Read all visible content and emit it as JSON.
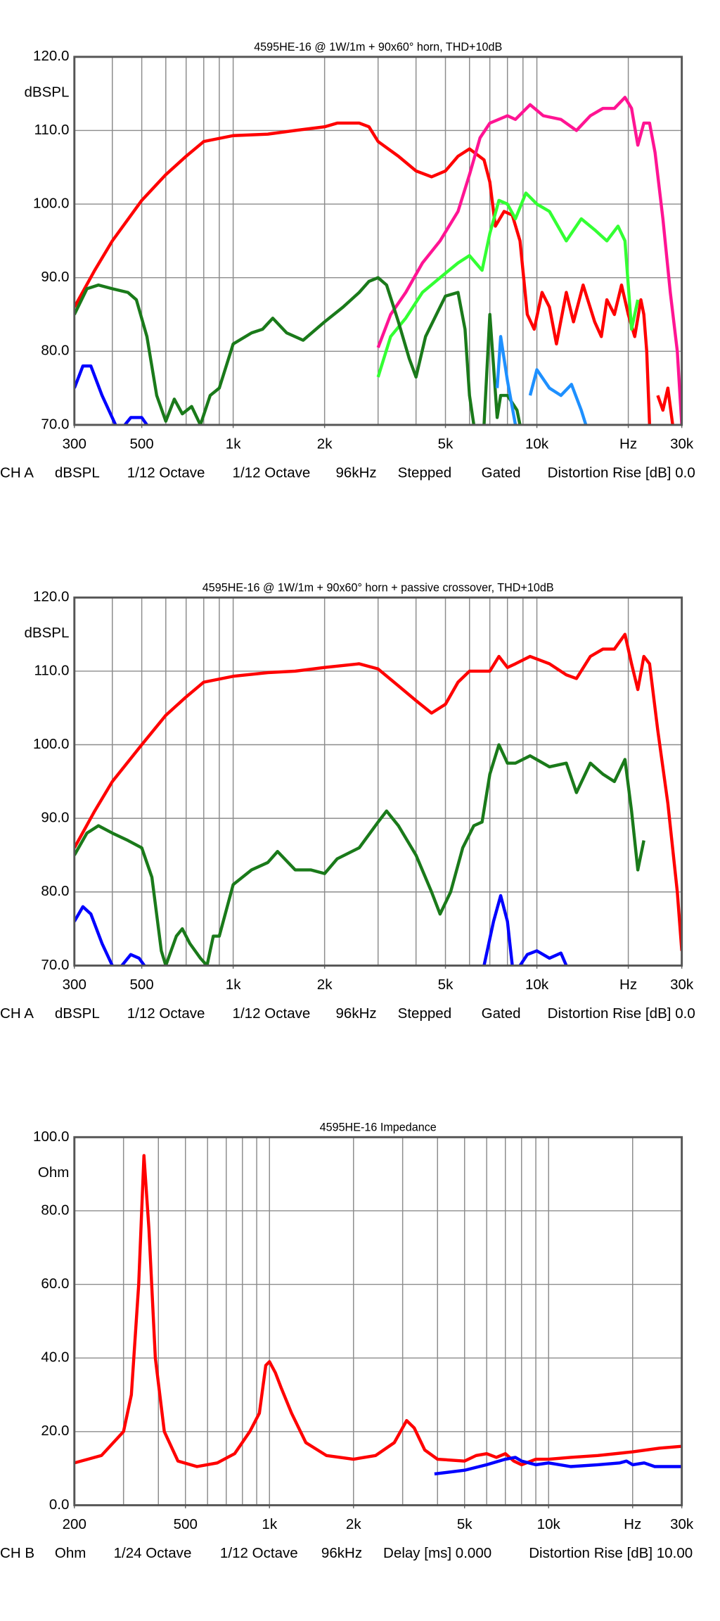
{
  "chart_data": [
    {
      "type": "line",
      "title": "4595HE-16 @ 1W/1m + 90x60° horn, THD+10dB",
      "ylabel": "dBSPL",
      "xscale": "log",
      "grid": true,
      "xlim": [
        300,
        30000
      ],
      "ylim": [
        70,
        120
      ],
      "xticks": [
        300,
        500,
        {
          "value": 1000,
          "label": "1k"
        },
        {
          "value": 2000,
          "label": "2k"
        },
        {
          "value": 5000,
          "label": "5k"
        },
        {
          "value": 10000,
          "label": "10k"
        },
        {
          "value": 20000,
          "label": "Hz"
        },
        {
          "value": 30000,
          "label": "30k"
        }
      ],
      "xgrid": [
        300,
        400,
        500,
        600,
        700,
        800,
        900,
        1000,
        2000,
        3000,
        4000,
        5000,
        6000,
        7000,
        8000,
        9000,
        10000,
        20000,
        30000
      ],
      "yticks": [
        {
          "value": 70,
          "label": "70.0"
        },
        {
          "value": 80,
          "label": "80.0"
        },
        {
          "value": 90,
          "label": "90.0"
        },
        {
          "value": 100,
          "label": "100.0"
        },
        {
          "value": 110,
          "label": "110.0"
        },
        {
          "value": 120,
          "label": "120.0"
        }
      ],
      "footer": [
        "CH A",
        "dBSPL",
        "1/12 Octave",
        "1/12 Octave",
        "96kHz",
        "Stepped",
        "Gated",
        "Distortion Rise [dB] 0.0"
      ],
      "series": [
        {
          "color": "#ff0000",
          "x": [
            300,
            350,
            400,
            500,
            600,
            700,
            800,
            1000,
            1300,
            1600,
            2000,
            2200,
            2600,
            2800,
            3000,
            3500,
            4000,
            4500,
            5000,
            5500,
            6000,
            6700,
            7000,
            7300,
            7800,
            8300,
            8800,
            9300,
            9800,
            10400,
            11000,
            11600,
            12500,
            13200,
            14200,
            15500,
            16300,
            17000,
            18000,
            19000,
            20000,
            21000,
            22000,
            22500,
            23000,
            23500,
            24200,
            25000,
            26000,
            27000,
            28000
          ],
          "values": [
            86,
            91,
            95,
            100.5,
            104,
            106.5,
            108.5,
            109.3,
            109.5,
            110,
            110.5,
            111,
            111,
            110.5,
            108.5,
            106.5,
            104.5,
            103.7,
            104.5,
            106.5,
            107.5,
            106,
            103,
            97,
            99,
            98.5,
            95,
            85,
            83,
            88,
            86,
            81,
            88,
            84,
            89,
            84,
            82,
            87,
            85,
            89,
            85,
            82,
            87,
            85,
            80,
            70,
            null,
            74,
            72,
            75,
            70
          ]
        },
        {
          "color": "#ff1493",
          "x": [
            3000,
            3300,
            3700,
            4200,
            4800,
            5500,
            6000,
            6500,
            7000,
            8000,
            8500,
            9500,
            10500,
            12000,
            13500,
            15000,
            16500,
            18000,
            19500,
            20500,
            21500,
            22500,
            23500,
            24500,
            26000,
            27500,
            29000,
            30000
          ],
          "values": [
            80.5,
            85,
            88,
            92,
            95,
            99,
            104,
            109,
            111,
            112,
            111.5,
            113.5,
            112,
            111.5,
            110,
            112,
            113,
            113,
            114.5,
            113,
            108,
            111,
            111,
            107,
            98,
            88,
            80,
            70
          ]
        },
        {
          "color": "#33ff33",
          "x": [
            3000,
            3300,
            3700,
            4200,
            4800,
            5500,
            6000,
            6600,
            7000,
            7500,
            8000,
            8500,
            9200,
            10000,
            11000,
            12500,
            14000,
            15500,
            17000,
            18500,
            19500,
            20500,
            21500
          ],
          "values": [
            76.5,
            82,
            84.5,
            88,
            90,
            92,
            93,
            91,
            96,
            100.5,
            100,
            98,
            101.5,
            100,
            99,
            95,
            98,
            96.5,
            95,
            97,
            95,
            83,
            87
          ]
        },
        {
          "color": "#1a7a1a",
          "x": [
            300,
            330,
            360,
            400,
            450,
            480,
            520,
            560,
            600,
            640,
            680,
            730,
            780,
            840,
            900,
            1000,
            1150,
            1250,
            1350,
            1500,
            1700,
            2000,
            2300,
            2600,
            2800,
            3000,
            3200,
            3500,
            3800,
            4000,
            4300,
            5000,
            5500,
            5800,
            6000,
            6200,
            6450,
            6700,
            7000,
            7200,
            7400,
            7600,
            8000,
            8600,
            8800
          ],
          "values": [
            85,
            88.5,
            89,
            88.5,
            88,
            87,
            82,
            74,
            70.5,
            73.5,
            71.5,
            72.5,
            70,
            74,
            75,
            81,
            82.5,
            83,
            84.5,
            82.5,
            81.5,
            84,
            86,
            88,
            89.5,
            90,
            89,
            84,
            79,
            76.5,
            82,
            87.5,
            88,
            83,
            74,
            70,
            null,
            70,
            85,
            78,
            71,
            74,
            74,
            72,
            70
          ]
        },
        {
          "color": "#0000ff",
          "x": [
            300,
            320,
            340,
            370,
            410,
            425,
            440,
            460,
            500,
            520
          ],
          "values": [
            75,
            78,
            78,
            74,
            70,
            null,
            70,
            71,
            71,
            70
          ]
        },
        {
          "color": "#1e90ff",
          "x": [
            7400,
            7600,
            8000,
            8500,
            9000,
            9500,
            10000,
            11000,
            12000,
            13000,
            14000,
            14500
          ],
          "values": [
            75,
            82,
            76,
            70,
            null,
            74,
            77.5,
            75,
            74,
            75.5,
            72,
            70
          ]
        }
      ]
    },
    {
      "type": "line",
      "title": "4595HE-16 @ 1W/1m + 90x60° horn + passive crossover, THD+10dB",
      "ylabel": "dBSPL",
      "xscale": "log",
      "grid": true,
      "xlim": [
        300,
        30000
      ],
      "ylim": [
        70,
        120
      ],
      "xticks": [
        300,
        500,
        {
          "value": 1000,
          "label": "1k"
        },
        {
          "value": 2000,
          "label": "2k"
        },
        {
          "value": 5000,
          "label": "5k"
        },
        {
          "value": 10000,
          "label": "10k"
        },
        {
          "value": 20000,
          "label": "Hz"
        },
        {
          "value": 30000,
          "label": "30k"
        }
      ],
      "xgrid": [
        300,
        400,
        500,
        600,
        700,
        800,
        900,
        1000,
        2000,
        3000,
        4000,
        5000,
        6000,
        7000,
        8000,
        9000,
        10000,
        20000,
        30000
      ],
      "yticks": [
        {
          "value": 70,
          "label": "70.0"
        },
        {
          "value": 80,
          "label": "80.0"
        },
        {
          "value": 90,
          "label": "90.0"
        },
        {
          "value": 100,
          "label": "100.0"
        },
        {
          "value": 110,
          "label": "110.0"
        },
        {
          "value": 120,
          "label": "120.0"
        }
      ],
      "footer": [
        "CH A",
        "dBSPL",
        "1/12 Octave",
        "1/12 Octave",
        "96kHz",
        "Stepped",
        "Gated",
        "Distortion Rise [dB] 0.0"
      ],
      "series": [
        {
          "color": "#ff0000",
          "x": [
            300,
            350,
            400,
            500,
            600,
            700,
            800,
            1000,
            1300,
            1600,
            2000,
            2600,
            3000,
            3500,
            4000,
            4500,
            5000,
            5500,
            6000,
            7000,
            7500,
            8000,
            8500,
            9500,
            11000,
            12500,
            13500,
            15000,
            16500,
            18000,
            19500,
            20500,
            21500,
            22500,
            23500,
            25000,
            27000,
            29000,
            30000
          ],
          "values": [
            86,
            91,
            95,
            100,
            104,
            106.5,
            108.5,
            109.3,
            109.8,
            110,
            110.5,
            111,
            110.3,
            108,
            106,
            104.3,
            105.5,
            108.5,
            110,
            110,
            112,
            110.5,
            111,
            112,
            111,
            109.5,
            109,
            112,
            113,
            113,
            115,
            111,
            107.5,
            112,
            111,
            102,
            92,
            80,
            72
          ]
        },
        {
          "color": "#1a7a1a",
          "x": [
            300,
            330,
            360,
            400,
            450,
            500,
            540,
            580,
            600,
            650,
            680,
            720,
            780,
            820,
            860,
            900,
            1000,
            1150,
            1300,
            1400,
            1600,
            1800,
            2000,
            2200,
            2600,
            3000,
            3200,
            3500,
            4000,
            4500,
            4800,
            5200,
            5700,
            6200,
            6600,
            7000,
            7500,
            8000,
            8500,
            9500,
            11000,
            12500,
            13500,
            15000,
            16500,
            18000,
            19500,
            20500,
            21500,
            22500
          ],
          "values": [
            85,
            88,
            89,
            88,
            87,
            86,
            82,
            72,
            70,
            74,
            75,
            73,
            71,
            70,
            74,
            74,
            81,
            83,
            84,
            85.5,
            83,
            83,
            82.5,
            84.5,
            86,
            89.5,
            91,
            89,
            85,
            80,
            77,
            80,
            86,
            89,
            89.5,
            96,
            100,
            97.5,
            97.5,
            98.5,
            97,
            97.5,
            93.5,
            97.5,
            96,
            95,
            98,
            91,
            83,
            87
          ]
        },
        {
          "color": "#0000ff",
          "x": [
            300,
            320,
            340,
            370,
            400,
            415,
            430,
            460,
            490,
            510,
            3000,
            6700,
            7200,
            7600,
            8000,
            8300,
            8550,
            8800,
            9300,
            10000,
            11000,
            12000,
            12500
          ],
          "values": [
            76,
            78,
            77,
            73,
            70,
            null,
            70,
            71.5,
            71,
            70,
            null,
            70,
            76,
            79.5,
            76,
            70,
            null,
            70,
            71.5,
            72,
            71,
            71.7,
            70
          ]
        }
      ]
    },
    {
      "type": "line",
      "title": "4595HE-16 Impedance",
      "ylabel": "Ohm",
      "xscale": "log",
      "grid": true,
      "xlim": [
        200,
        30000
      ],
      "ylim": [
        0,
        100
      ],
      "xticks": [
        200,
        500,
        {
          "value": 1000,
          "label": "1k"
        },
        {
          "value": 2000,
          "label": "2k"
        },
        {
          "value": 5000,
          "label": "5k"
        },
        {
          "value": 10000,
          "label": "10k"
        },
        {
          "value": 20000,
          "label": "Hz"
        },
        {
          "value": 30000,
          "label": "30k"
        }
      ],
      "xgrid": [
        200,
        300,
        400,
        500,
        600,
        700,
        800,
        900,
        1000,
        2000,
        3000,
        4000,
        5000,
        6000,
        7000,
        8000,
        9000,
        10000,
        20000,
        30000
      ],
      "yticks": [
        {
          "value": 0,
          "label": "0.0"
        },
        {
          "value": 20,
          "label": "20.0"
        },
        {
          "value": 40,
          "label": "40.0"
        },
        {
          "value": 60,
          "label": "60.0"
        },
        {
          "value": 80,
          "label": "80.0"
        },
        {
          "value": 100,
          "label": "100.0"
        }
      ],
      "footer": [
        "CH B",
        "Ohm",
        "1/24 Octave",
        "1/12 Octave",
        "96kHz",
        "Delay [ms] 0.000",
        "Distortion Rise [dB] 10.00"
      ],
      "series": [
        {
          "color": "#ff0000",
          "x": [
            200,
            250,
            300,
            320,
            340,
            355,
            370,
            390,
            420,
            470,
            550,
            650,
            750,
            850,
            920,
            970,
            1000,
            1050,
            1100,
            1200,
            1350,
            1600,
            2000,
            2400,
            2800,
            3100,
            3300,
            3600,
            4000,
            5000,
            5500,
            6000,
            6500,
            7000,
            7500,
            8000,
            9000,
            10000,
            12000,
            15000,
            20000,
            25000,
            30000
          ],
          "values": [
            11.5,
            13.5,
            20,
            30,
            60,
            95,
            75,
            40,
            20,
            12,
            10.5,
            11.5,
            14,
            20,
            25,
            38,
            39,
            36,
            32,
            25,
            17,
            13.5,
            12.5,
            13.5,
            17,
            23,
            21,
            15,
            12.5,
            12,
            13.5,
            14,
            13,
            14,
            12,
            11,
            12.5,
            12.5,
            13,
            13.5,
            14.5,
            15.5,
            16
          ]
        },
        {
          "color": "#0000ff",
          "x": [
            3900,
            5000,
            6000,
            7000,
            7600,
            8000,
            9000,
            10000,
            12000,
            15000,
            18000,
            19000,
            20000,
            22000,
            24000,
            30000
          ],
          "values": [
            8.5,
            9.5,
            11,
            12.5,
            13,
            12,
            11,
            11.5,
            10.5,
            11,
            11.5,
            12,
            11,
            11.5,
            10.5,
            10.5
          ]
        }
      ]
    }
  ]
}
